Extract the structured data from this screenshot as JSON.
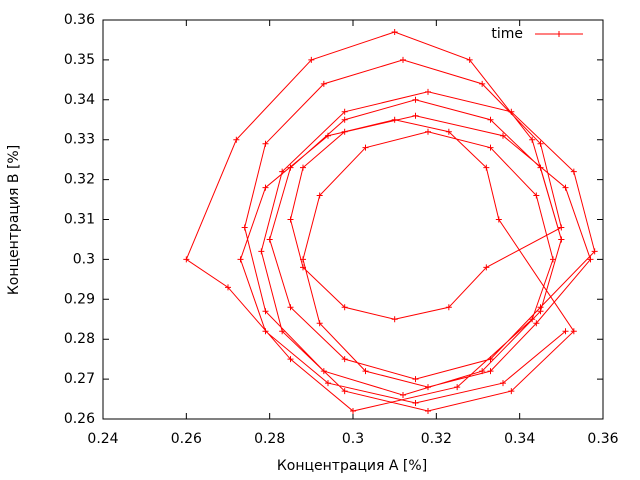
{
  "chart_data": {
    "type": "line",
    "xlabel": "Концентрация A [%]",
    "ylabel": "Концентрация B [%]",
    "xlim": [
      0.24,
      0.36
    ],
    "xticks": [
      0.24,
      0.26,
      0.28,
      0.3,
      0.32,
      0.34,
      0.36
    ],
    "ylim": [
      0.26,
      0.36
    ],
    "yticks": [
      0.26,
      0.27,
      0.28,
      0.29,
      0.3,
      0.31,
      0.32,
      0.33,
      0.34,
      0.35,
      0.36
    ],
    "legend": "top-right",
    "series": [
      {
        "name": "time",
        "color": "#ff0000",
        "x": [
          0.35,
          0.345,
          0.333,
          0.315,
          0.298,
          0.285,
          0.28,
          0.285,
          0.298,
          0.315,
          0.333,
          0.345,
          0.358,
          0.353,
          0.338,
          0.318,
          0.298,
          0.283,
          0.278,
          0.283,
          0.298,
          0.318,
          0.338,
          0.353,
          0.335,
          0.332,
          0.323,
          0.31,
          0.298,
          0.288,
          0.285,
          0.288,
          0.298,
          0.31,
          0.323,
          0.332,
          0.35,
          0.345,
          0.331,
          0.312,
          0.293,
          0.279,
          0.274,
          0.279,
          0.293,
          0.312,
          0.331,
          0.345,
          0.35,
          0.343,
          0.328,
          0.31,
          0.29,
          0.272,
          0.26,
          0.27,
          0.285,
          0.3,
          0.325,
          0.343,
          0.348,
          0.344,
          0.333,
          0.318,
          0.303,
          0.292,
          0.288,
          0.292,
          0.303,
          0.318,
          0.333,
          0.344,
          0.357,
          0.351,
          0.336,
          0.315,
          0.294,
          0.279,
          0.273,
          0.279,
          0.294,
          0.315,
          0.336,
          0.351
        ],
        "values": [
          0.305,
          0.323,
          0.335,
          0.34,
          0.335,
          0.323,
          0.305,
          0.288,
          0.275,
          0.27,
          0.275,
          0.288,
          0.302,
          0.322,
          0.337,
          0.342,
          0.337,
          0.322,
          0.302,
          0.282,
          0.267,
          0.262,
          0.267,
          0.282,
          0.31,
          0.323,
          0.332,
          0.335,
          0.332,
          0.323,
          0.31,
          0.298,
          0.288,
          0.285,
          0.288,
          0.298,
          0.308,
          0.329,
          0.344,
          0.35,
          0.344,
          0.329,
          0.308,
          0.287,
          0.272,
          0.266,
          0.272,
          0.287,
          0.305,
          0.33,
          0.35,
          0.357,
          0.35,
          0.33,
          0.3,
          0.293,
          0.275,
          0.262,
          0.268,
          0.285,
          0.3,
          0.316,
          0.328,
          0.332,
          0.328,
          0.316,
          0.3,
          0.284,
          0.272,
          0.268,
          0.272,
          0.284,
          0.3,
          0.318,
          0.331,
          0.336,
          0.331,
          0.318,
          0.3,
          0.282,
          0.269,
          0.264,
          0.269,
          0.282
        ]
      }
    ]
  }
}
